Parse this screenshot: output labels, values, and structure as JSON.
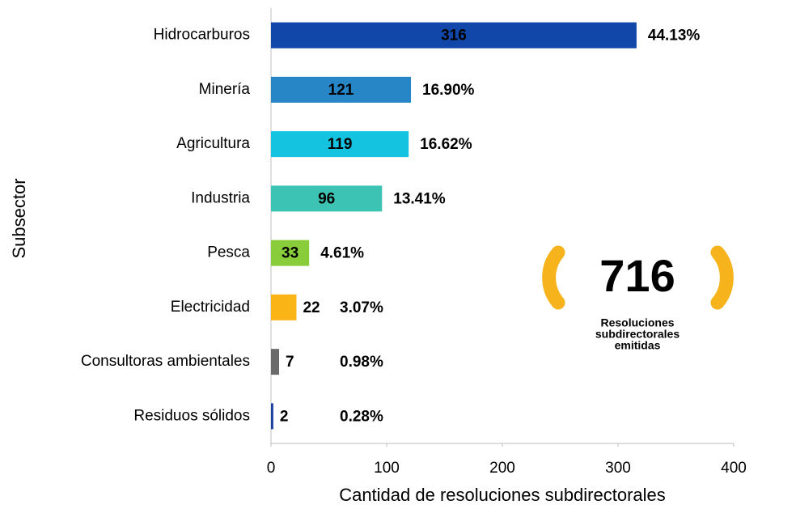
{
  "chart_data": {
    "type": "hbar",
    "categories": [
      "Hidrocarburos",
      "Minería",
      "Agricultura",
      "Industria",
      "Pesca",
      "Electricidad",
      "Consultoras ambientales",
      "Residuos sólidos"
    ],
    "values": [
      316,
      121,
      119,
      96,
      33,
      22,
      7,
      2
    ],
    "colors": [
      "#1047a9",
      "#2686c6",
      "#14c3e0",
      "#3dc3b3",
      "#8acd3b",
      "#fbb416",
      "#6b6b6b",
      "#1b40a2"
    ],
    "shares": [
      "44.13%",
      "16.90%",
      "16.62%",
      "13.41%",
      "4.61%",
      "3.07%",
      "0.98%",
      "0.28%"
    ],
    "xlim": [
      0,
      400
    ],
    "xticks": [
      0,
      100,
      200,
      300,
      400
    ],
    "xlabel": "Cantidad de resoluciones subdirectorales",
    "ylabel": "Subsector",
    "annotation": {
      "total": 716,
      "lines": [
        "Resoluciones",
        "subdirectorales",
        "emitidas"
      ],
      "color": "#f6b31b"
    }
  }
}
